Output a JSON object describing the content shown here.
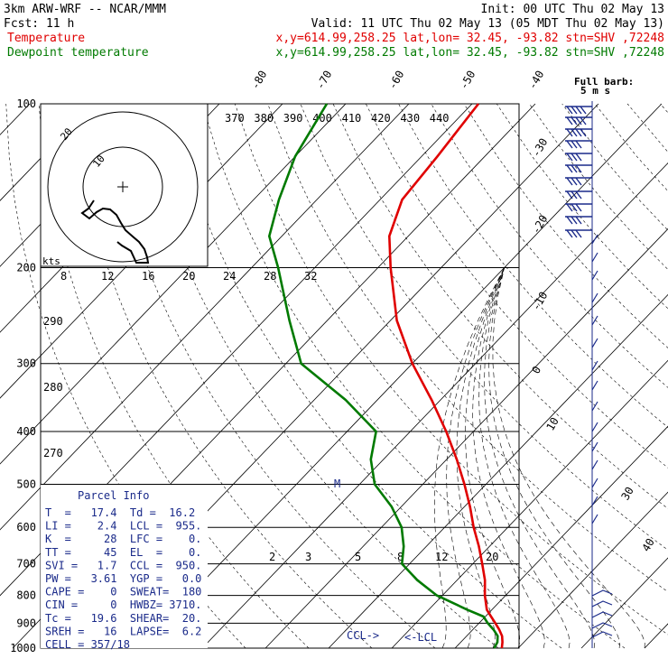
{
  "header": {
    "title": "3km ARW-WRF -- NCAR/MMM",
    "init": "Init: 00 UTC Thu 02 May 13",
    "fcst": "Fcst:    11 h",
    "valid": "Valid: 11 UTC Thu 02 May 13 (05 MDT Thu 02 May 13)",
    "temp_label": "Temperature",
    "temp_loc": "x,y=614.99,258.25   lat,lon= 32.45, -93.82  stn=SHV ,72248",
    "dew_label": "Dewpoint temperature",
    "dew_loc": "x,y=614.99,258.25   lat,lon= 32.45, -93.82  stn=SHV ,72248"
  },
  "colors": {
    "temperature": "#e00000",
    "dewpoint": "#007a00",
    "parcel_info": "#1a2a8a"
  },
  "barb_legend": {
    "line1": "Full barb:",
    "line2": "5 m s"
  },
  "hodograph": {
    "unit": "kts",
    "ring_labels": [
      "10",
      "20"
    ],
    "speed_ticks": [
      "8",
      "12",
      "16",
      "20",
      "24",
      "28",
      "32"
    ]
  },
  "theta_labels": [
    "370",
    "380",
    "390",
    "400",
    "410",
    "420",
    "430",
    "440"
  ],
  "mixing_ratio_labels": [
    "2",
    "3",
    "5",
    "8",
    "12",
    "20"
  ],
  "parcel_info": {
    "title": "Parcel Info",
    "rows": [
      "T  =   17.4  Td =  16.2",
      "LI =    2.4  LCL =  955.",
      "K  =     28  LFC =    0.",
      "TT =     45  EL  =    0.",
      "SVI =   1.7  CCL =  950.",
      "PW =   3.61  YGP =   0.0",
      "CAPE =    0  SWEAT=  180",
      "CIN =     0  HWBZ= 3710.",
      "Tc =   19.6  SHEAR=  20.",
      "SREH =   16  LAPSE=  6.2",
      "CELL = 357/18"
    ]
  },
  "markers": {
    "ccl": "CCL->",
    "lcl": "<-LCL",
    "m": "M"
  },
  "chart_data": {
    "type": "line",
    "title": "",
    "y_axis": {
      "label": "",
      "scale": "log",
      "ticks": [
        100,
        200,
        300,
        400,
        500,
        600,
        700,
        800,
        900,
        1000
      ],
      "range": [
        100,
        1000
      ]
    },
    "x_axis": {
      "label": "",
      "skewed_isotherm_ticks": [
        -80,
        -70,
        -60,
        -50,
        -40,
        -30,
        -20,
        -10,
        0,
        10,
        30,
        40
      ]
    },
    "series": [
      {
        "name": "Temperature",
        "pressure": [
          1000,
          975,
          950,
          925,
          900,
          875,
          850,
          800,
          750,
          700,
          650,
          600,
          550,
          500,
          450,
          400,
          350,
          300,
          250,
          200,
          175,
          150,
          125,
          100
        ],
        "values": [
          17.4,
          16.6,
          15.6,
          14.2,
          12.6,
          10.9,
          9.2,
          6.7,
          4.4,
          1.5,
          -1.7,
          -5.4,
          -9.1,
          -13.4,
          -18.4,
          -24.3,
          -31.4,
          -40.0,
          -49.0,
          -58.0,
          -63.0,
          -66.5,
          -67.5,
          -69.0
        ]
      },
      {
        "name": "Dewpoint temperature",
        "pressure": [
          1000,
          975,
          950,
          925,
          900,
          875,
          850,
          800,
          750,
          700,
          650,
          600,
          550,
          500,
          450,
          400,
          350,
          300,
          250,
          200,
          175,
          150,
          125,
          100
        ],
        "values": [
          16.2,
          15.8,
          14.9,
          13.3,
          11.4,
          9.7,
          6.1,
          -0.9,
          -6.3,
          -11.2,
          -13.6,
          -16.8,
          -21.5,
          -27.6,
          -32.0,
          -35.4,
          -45.0,
          -57.6,
          -66.0,
          -75.8,
          -82.0,
          -86.0,
          -90.0,
          -93.0
        ]
      }
    ]
  }
}
